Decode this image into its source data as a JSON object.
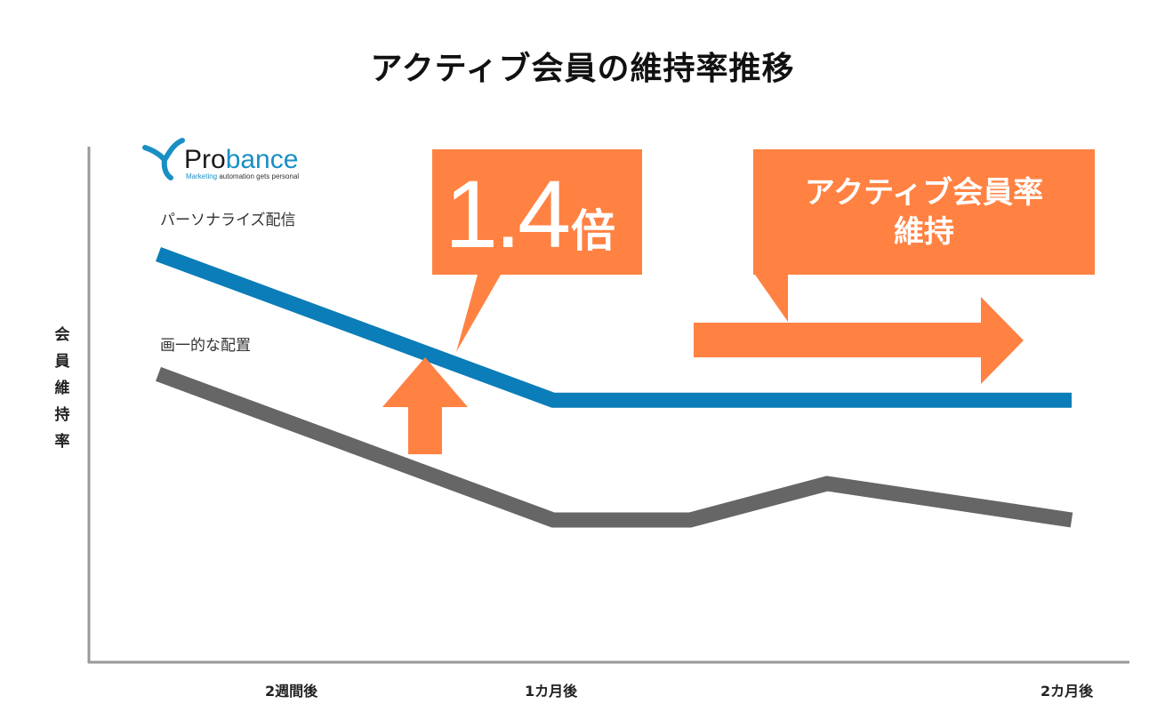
{
  "chart_data": {
    "type": "line",
    "title": "アクティブ会員の維持率推移",
    "ylabel": "会員維持率",
    "xlabel": "",
    "x_tick_labels": [
      "2週間後",
      "1カ月後",
      "2カ月後"
    ],
    "x": [
      0,
      1,
      2,
      3,
      4
    ],
    "xlim": [
      0,
      4
    ],
    "ylim": [
      0,
      100
    ],
    "grid": false,
    "series": [
      {
        "name": "パーソナライズ配信",
        "color": "#0b7db8",
        "values": [
          79,
          51,
          51,
          51,
          51
        ]
      },
      {
        "name": "画一的な配置",
        "color": "#666666",
        "values": [
          56,
          28,
          28,
          35,
          28
        ]
      }
    ],
    "annotations": [
      {
        "text": "1.4",
        "unit": "倍",
        "color": "#ff8243"
      },
      {
        "line1": "アクティブ会員率",
        "line2": "維持",
        "color": "#ff8243"
      }
    ]
  },
  "logo": {
    "name_dark": "Pro",
    "name_blue": "bance",
    "tag_blue": "Marketing",
    "tag_dark": " automation gets personal"
  }
}
